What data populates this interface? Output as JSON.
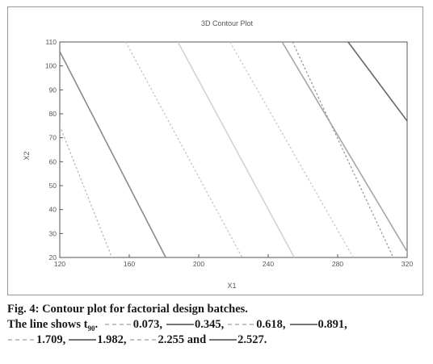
{
  "chart_data": {
    "type": "line",
    "title": "3D Contour Plot",
    "xlabel": "X1",
    "ylabel": "X2",
    "xlim": [
      120,
      320
    ],
    "ylim": [
      20,
      110
    ],
    "xticks": [
      "120",
      "160",
      "200",
      "240",
      "280",
      "320"
    ],
    "yticks": [
      "20",
      "30",
      "40",
      "50",
      "60",
      "70",
      "80",
      "90",
      "100",
      "110"
    ],
    "grid": false,
    "series": [
      {
        "name": "0.073",
        "style": "dashed",
        "color": "#b8b8b8",
        "points": [
          [
            120,
            75
          ],
          [
            150,
            20
          ]
        ]
      },
      {
        "name": "0.345",
        "style": "solid",
        "color": "#8a8a8a",
        "points": [
          [
            120,
            106
          ],
          [
            181,
            20
          ]
        ]
      },
      {
        "name": "0.618",
        "style": "dashed",
        "color": "#c4c4c4",
        "points": [
          [
            158,
            110
          ],
          [
            225,
            20
          ]
        ]
      },
      {
        "name": "0.891",
        "style": "solid",
        "color": "#d2d2d2",
        "points": [
          [
            188,
            110
          ],
          [
            255,
            20
          ]
        ]
      },
      {
        "name": "1.709",
        "style": "dashed",
        "color": "#c8c8c8",
        "points": [
          [
            218,
            110
          ],
          [
            289,
            20
          ]
        ]
      },
      {
        "name": "1.982",
        "style": "solid",
        "color": "#a6a6a6",
        "points": [
          [
            248,
            110
          ],
          [
            322,
            20
          ]
        ]
      },
      {
        "name": "2.255",
        "style": "dashed",
        "color": "#9a9a9a",
        "points": [
          [
            254,
            110
          ],
          [
            312,
            20
          ]
        ]
      },
      {
        "name": "2.527",
        "style": "solid",
        "color": "#666666",
        "points": [
          [
            286,
            110
          ],
          [
            320,
            77
          ]
        ]
      }
    ]
  },
  "caption": {
    "fig_label": "Fig. 4: Contour plot for factorial design batches.",
    "prefix": "The line shows t",
    "subscript": "90",
    "items": [
      {
        "value": "0.073,",
        "style": "dashed"
      },
      {
        "value": "0.345,",
        "style": "solid"
      },
      {
        "value": "0.618,",
        "style": "dashed"
      },
      {
        "value": "0.891,",
        "style": "solid"
      },
      {
        "value": "1.709,",
        "style": "dashed"
      },
      {
        "value": "1.982,",
        "style": "solid"
      },
      {
        "value": "2.255 and",
        "style": "dashed"
      },
      {
        "value": "2.527.",
        "style": "solid"
      }
    ]
  }
}
